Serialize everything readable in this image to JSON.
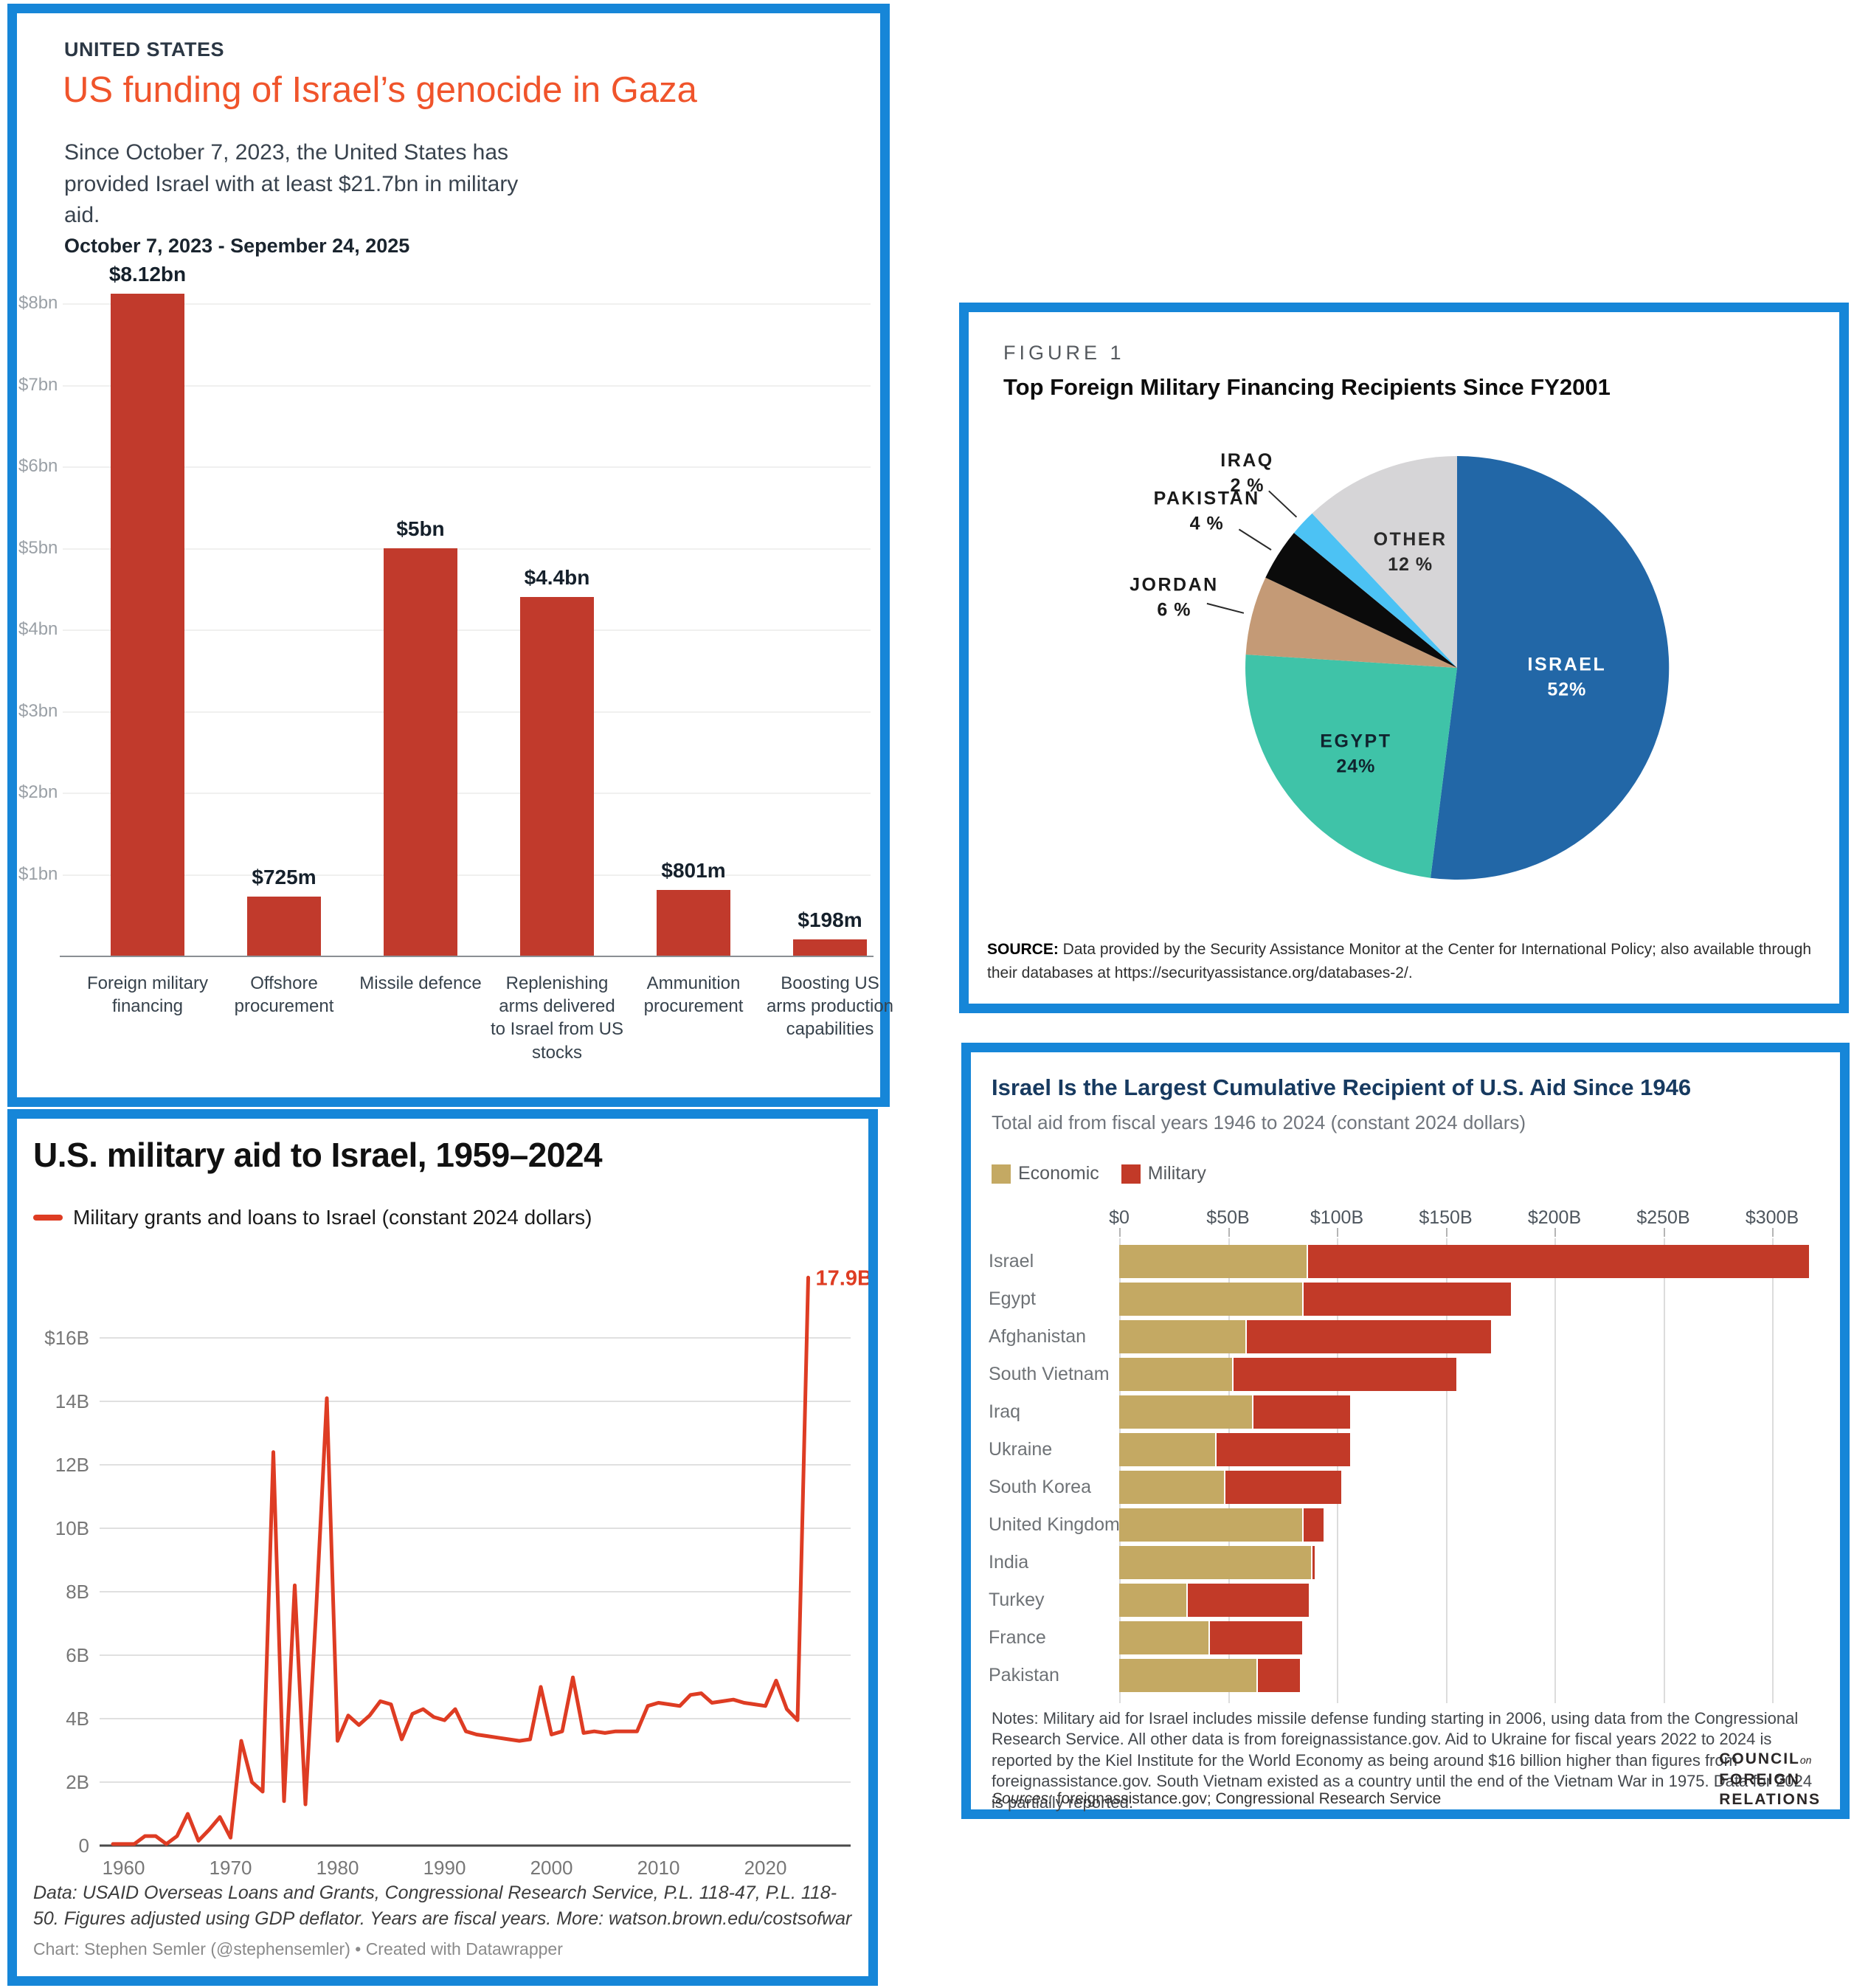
{
  "page": {
    "background": "#ffffff",
    "panel_border_color": "#1686d8"
  },
  "chart_data": [
    {
      "id": "gaza-funding-bar",
      "type": "bar",
      "kicker": "UNITED STATES",
      "title": "US funding of Israel’s genocide in Gaza",
      "title_color": "#f0542b",
      "subtitle": "Since October 7, 2023, the United States has provided Israel with at least $21.7bn in military aid.",
      "period": "October 7, 2023 - Sepember 24, 2025",
      "categories": [
        "Foreign military financing",
        "Offshore procurement",
        "Missile defence",
        "Replenishing arms delivered to Israel from US stocks",
        "Ammunition procurement",
        "Boosting US arms production capabilities"
      ],
      "values_bn": [
        8.12,
        0.725,
        5,
        4.4,
        0.801,
        0.198
      ],
      "value_labels": [
        "$8.12bn",
        "$725m",
        "$5bn",
        "$4.4bn",
        "$801m",
        "$198m"
      ],
      "y_ticks": [
        {
          "value": 8,
          "label": "$8bn"
        },
        {
          "value": 7,
          "label": "$7bn"
        },
        {
          "value": 6,
          "label": "$6bn"
        },
        {
          "value": 5,
          "label": "$5bn"
        },
        {
          "value": 4,
          "label": "$4bn"
        },
        {
          "value": 3,
          "label": "$3bn"
        },
        {
          "value": 2,
          "label": "$2bn"
        },
        {
          "value": 1,
          "label": "$1bn"
        }
      ],
      "ylim": [
        0,
        8.6
      ],
      "bar_color": "#c13a2c",
      "grid": true
    },
    {
      "id": "fmf-pie",
      "type": "pie",
      "figure_label": "FIGURE 1",
      "title": "Top Foreign Military Financing Recipients Since FY2001",
      "slices": [
        {
          "label": "ISRAEL",
          "pct": 52,
          "pct_label": "52%",
          "color": "#2267a7",
          "inside": true,
          "label_color": "#ffffff",
          "lr": 0.52
        },
        {
          "label": "EGYPT",
          "pct": 24,
          "pct_label": "24%",
          "color": "#3fc3a8",
          "inside": true,
          "label_color": "#10232e",
          "lr": 0.62
        },
        {
          "label": "JORDAN",
          "pct": 6,
          "pct_label": "6 %",
          "color": "#c49a76",
          "inside": false,
          "label_color": "#1a1a1a",
          "lr": 1.38
        },
        {
          "label": "PAKISTAN",
          "pct": 4,
          "pct_label": "4 %",
          "color": "#0b0b0b",
          "inside": false,
          "label_color": "#1a1a1a",
          "lr": 1.4
        },
        {
          "label": "IRAQ",
          "pct": 2,
          "pct_label": "2 %",
          "color": "#4cc2f4",
          "inside": false,
          "label_color": "#1a1a1a",
          "lr": 1.36
        },
        {
          "label": "OTHER",
          "pct": 12,
          "pct_label": "12 %",
          "color": "#d6d5d7",
          "inside": true,
          "label_color": "#2a2a2a",
          "lr": 0.6
        }
      ],
      "source_label": "SOURCE:",
      "source_text": " Data provided by the Security Assistance Monitor at the Center for International Policy; also available through their databases at https://securityassistance.org/databases-2/."
    },
    {
      "id": "us-aid-line",
      "type": "line",
      "title": "U.S. military aid to Israel, 1959–2024",
      "legend": "Military grants and loans to Israel (constant 2024 dollars)",
      "line_color": "#de3c23",
      "annotation": "17.9B",
      "x_ticks": [
        1960,
        1970,
        1980,
        1990,
        2000,
        2010,
        2020
      ],
      "y_ticks": [
        {
          "value": 16,
          "label": "$16B"
        },
        {
          "value": 14,
          "label": "14B"
        },
        {
          "value": 12,
          "label": "12B"
        },
        {
          "value": 10,
          "label": "10B"
        },
        {
          "value": 8,
          "label": "8B"
        },
        {
          "value": 6,
          "label": "6B"
        },
        {
          "value": 4,
          "label": "4B"
        },
        {
          "value": 2,
          "label": "2B"
        },
        {
          "value": 0,
          "label": "0"
        }
      ],
      "ylim": [
        0,
        18.5
      ],
      "years": [
        1959,
        1960,
        1961,
        1962,
        1963,
        1964,
        1965,
        1966,
        1967,
        1968,
        1969,
        1970,
        1971,
        1972,
        1973,
        1974,
        1975,
        1976,
        1977,
        1978,
        1979,
        1980,
        1981,
        1982,
        1983,
        1984,
        1985,
        1986,
        1987,
        1988,
        1989,
        1990,
        1991,
        1992,
        1993,
        1994,
        1995,
        1996,
        1997,
        1998,
        1999,
        2000,
        2001,
        2002,
        2003,
        2004,
        2005,
        2006,
        2007,
        2008,
        2009,
        2010,
        2011,
        2012,
        2013,
        2014,
        2015,
        2016,
        2017,
        2018,
        2019,
        2020,
        2021,
        2022,
        2023,
        2024
      ],
      "values_b": [
        0.05,
        0.05,
        0.05,
        0.3,
        0.3,
        0.05,
        0.3,
        1.0,
        0.15,
        0.5,
        0.9,
        0.25,
        3.3,
        2.0,
        1.7,
        12.4,
        1.4,
        8.2,
        1.3,
        7.4,
        14.1,
        3.3,
        4.1,
        3.8,
        4.1,
        4.55,
        4.45,
        3.35,
        4.15,
        4.3,
        4.05,
        3.95,
        4.3,
        3.6,
        3.5,
        3.45,
        3.4,
        3.35,
        3.3,
        3.35,
        5.0,
        3.5,
        3.6,
        5.3,
        3.55,
        3.6,
        3.55,
        3.6,
        3.6,
        3.6,
        4.4,
        4.5,
        4.45,
        4.4,
        4.75,
        4.8,
        4.5,
        4.55,
        4.6,
        4.5,
        4.45,
        4.4,
        5.2,
        4.3,
        3.95,
        17.9
      ],
      "footnote": "Data: USAID Overseas Loans and Grants, Congressional Research Service, P.L. 118-47, P.L. 118-50. Figures adjusted using GDP deflator. Years are fiscal years. More: watson.brown.edu/costsofwar",
      "credit": "Chart: Stephen Semler (@stephensemler) • Created with Datawrapper"
    },
    {
      "id": "cumulative-aid-stacked",
      "type": "bar-stacked-horizontal",
      "title": "Israel Is the Largest Cumulative Recipient of U.S. Aid Since 1946",
      "subtitle": "Total aid from fiscal years 1946 to 2024 (constant 2024 dollars)",
      "legend": [
        {
          "label": "Economic",
          "color": "#c4a963"
        },
        {
          "label": "Military",
          "color": "#c23a28"
        }
      ],
      "x_ticks": [
        {
          "value": 0,
          "label": "$0"
        },
        {
          "value": 50,
          "label": "$50B"
        },
        {
          "value": 100,
          "label": "$100B"
        },
        {
          "value": 150,
          "label": "$150B"
        },
        {
          "value": 200,
          "label": "$200B"
        },
        {
          "value": 250,
          "label": "$250B"
        },
        {
          "value": 300,
          "label": "$300B"
        }
      ],
      "xlim": [
        0,
        325
      ],
      "countries": [
        "Israel",
        "Egypt",
        "Afghanistan",
        "South Vietnam",
        "Iraq",
        "Ukraine",
        "South Korea",
        "United Kingdom",
        "India",
        "Turkey",
        "France",
        "Pakistan"
      ],
      "series": [
        {
          "name": "Economic",
          "values": [
            86,
            84,
            58,
            52,
            61,
            44,
            48,
            84,
            88,
            31,
            41,
            63
          ]
        },
        {
          "name": "Military",
          "values": [
            231,
            96,
            113,
            103,
            45,
            62,
            54,
            10,
            2,
            56,
            43,
            20
          ]
        }
      ],
      "notes": "Notes: Military aid for Israel includes missile defense funding starting in 2006, using data from the Congressional Research Service. All other data is from foreignassistance.gov. Aid to Ukraine for fiscal years 2022 to 2024 is reported by the Kiel Institute for the World Economy as being around $16 billion higher than figures from foreignassistance.gov. South Vietnam existed as a country until the end of the Vietnam War in 1975. Data for 2024 is partially reported.",
      "sources_label": "Sources:",
      "sources_text": " foreignassistance.gov; Congressional Research Service",
      "logo": {
        "line1": "COUNCIL",
        "line1_suffix": "on",
        "line2": "FOREIGN",
        "line3": "RELATIONS"
      }
    }
  ]
}
